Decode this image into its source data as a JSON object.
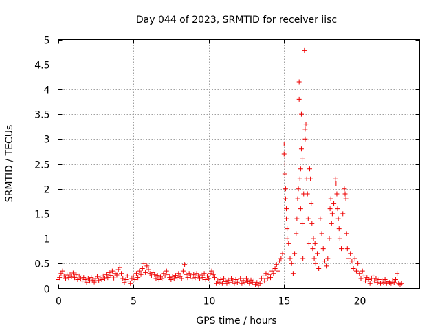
{
  "chart_data": {
    "type": "scatter",
    "title": "Day 044 of 2023, SRMTID for receiver iisc",
    "xlabel": "GPS time / hours",
    "ylabel": "SRMTID / TECUs",
    "xlim": [
      0,
      24
    ],
    "ylim": [
      0,
      5
    ],
    "x_ticks": [
      0,
      5,
      10,
      15,
      20
    ],
    "y_ticks": [
      0,
      0.5,
      1,
      1.5,
      2,
      2.5,
      3,
      3.5,
      4,
      4.5,
      5
    ],
    "x_tick_labels": [
      "0",
      "5",
      "10",
      "15",
      "20"
    ],
    "y_tick_labels": [
      "0",
      "0.5",
      "1",
      "1.5",
      "2",
      "2.5",
      "3",
      "3.5",
      "4",
      "4.5",
      "5"
    ],
    "grid": true,
    "marker": "+",
    "series": [
      {
        "color": "#ee0000",
        "points": [
          [
            0.0,
            0.18
          ],
          [
            0.1,
            0.22
          ],
          [
            0.2,
            0.3
          ],
          [
            0.3,
            0.35
          ],
          [
            0.4,
            0.25
          ],
          [
            0.5,
            0.2
          ],
          [
            0.6,
            0.27
          ],
          [
            0.7,
            0.22
          ],
          [
            0.8,
            0.29
          ],
          [
            0.9,
            0.24
          ],
          [
            1.0,
            0.31
          ],
          [
            1.1,
            0.22
          ],
          [
            1.2,
            0.28
          ],
          [
            1.3,
            0.18
          ],
          [
            1.4,
            0.25
          ],
          [
            1.5,
            0.2
          ],
          [
            1.6,
            0.15
          ],
          [
            1.7,
            0.22
          ],
          [
            1.8,
            0.18
          ],
          [
            1.9,
            0.12
          ],
          [
            2.0,
            0.2
          ],
          [
            2.1,
            0.15
          ],
          [
            2.2,
            0.22
          ],
          [
            2.3,
            0.17
          ],
          [
            2.4,
            0.13
          ],
          [
            2.5,
            0.2
          ],
          [
            2.6,
            0.24
          ],
          [
            2.7,
            0.16
          ],
          [
            2.8,
            0.21
          ],
          [
            2.9,
            0.18
          ],
          [
            3.0,
            0.25
          ],
          [
            3.1,
            0.2
          ],
          [
            3.2,
            0.28
          ],
          [
            3.3,
            0.22
          ],
          [
            3.4,
            0.32
          ],
          [
            3.5,
            0.26
          ],
          [
            3.6,
            0.35
          ],
          [
            3.7,
            0.21
          ],
          [
            3.8,
            0.3
          ],
          [
            3.9,
            0.27
          ],
          [
            4.0,
            0.38
          ],
          [
            4.1,
            0.42
          ],
          [
            4.2,
            0.3
          ],
          [
            4.3,
            0.2
          ],
          [
            4.4,
            0.12
          ],
          [
            4.5,
            0.18
          ],
          [
            4.6,
            0.25
          ],
          [
            4.7,
            0.15
          ],
          [
            4.8,
            0.1
          ],
          [
            4.9,
            0.2
          ],
          [
            5.0,
            0.25
          ],
          [
            5.1,
            0.18
          ],
          [
            5.2,
            0.3
          ],
          [
            5.3,
            0.22
          ],
          [
            5.4,
            0.35
          ],
          [
            5.5,
            0.28
          ],
          [
            5.6,
            0.4
          ],
          [
            5.7,
            0.5
          ],
          [
            5.8,
            0.32
          ],
          [
            5.9,
            0.45
          ],
          [
            6.0,
            0.38
          ],
          [
            6.1,
            0.3
          ],
          [
            6.2,
            0.25
          ],
          [
            6.3,
            0.32
          ],
          [
            6.4,
            0.28
          ],
          [
            6.5,
            0.2
          ],
          [
            6.6,
            0.26
          ],
          [
            6.7,
            0.18
          ],
          [
            6.8,
            0.23
          ],
          [
            6.9,
            0.2
          ],
          [
            7.0,
            0.3
          ],
          [
            7.1,
            0.25
          ],
          [
            7.2,
            0.35
          ],
          [
            7.3,
            0.28
          ],
          [
            7.4,
            0.22
          ],
          [
            7.5,
            0.18
          ],
          [
            7.6,
            0.24
          ],
          [
            7.7,
            0.2
          ],
          [
            7.8,
            0.26
          ],
          [
            7.9,
            0.22
          ],
          [
            8.0,
            0.3
          ],
          [
            8.1,
            0.24
          ],
          [
            8.2,
            0.2
          ],
          [
            8.3,
            0.35
          ],
          [
            8.4,
            0.48
          ],
          [
            8.5,
            0.28
          ],
          [
            8.6,
            0.22
          ],
          [
            8.7,
            0.3
          ],
          [
            8.8,
            0.25
          ],
          [
            8.9,
            0.2
          ],
          [
            9.0,
            0.28
          ],
          [
            9.1,
            0.22
          ],
          [
            9.2,
            0.3
          ],
          [
            9.3,
            0.25
          ],
          [
            9.4,
            0.2
          ],
          [
            9.5,
            0.27
          ],
          [
            9.6,
            0.22
          ],
          [
            9.7,
            0.3
          ],
          [
            9.8,
            0.18
          ],
          [
            9.9,
            0.25
          ],
          [
            10.0,
            0.2
          ],
          [
            10.1,
            0.3
          ],
          [
            10.2,
            0.35
          ],
          [
            10.3,
            0.28
          ],
          [
            10.4,
            0.22
          ],
          [
            10.5,
            0.1
          ],
          [
            10.6,
            0.15
          ],
          [
            10.7,
            0.12
          ],
          [
            10.8,
            0.18
          ],
          [
            10.9,
            0.1
          ],
          [
            11.0,
            0.2
          ],
          [
            11.1,
            0.14
          ],
          [
            11.2,
            0.1
          ],
          [
            11.3,
            0.17
          ],
          [
            11.4,
            0.12
          ],
          [
            11.5,
            0.2
          ],
          [
            11.6,
            0.15
          ],
          [
            11.7,
            0.1
          ],
          [
            11.8,
            0.18
          ],
          [
            11.9,
            0.12
          ],
          [
            12.0,
            0.15
          ],
          [
            12.1,
            0.2
          ],
          [
            12.2,
            0.1
          ],
          [
            12.3,
            0.16
          ],
          [
            12.4,
            0.12
          ],
          [
            12.5,
            0.2
          ],
          [
            12.6,
            0.14
          ],
          [
            12.7,
            0.1
          ],
          [
            12.8,
            0.17
          ],
          [
            12.9,
            0.12
          ],
          [
            13.0,
            0.15
          ],
          [
            13.1,
            0.08
          ],
          [
            13.2,
            0.12
          ],
          [
            13.3,
            0.06
          ],
          [
            13.4,
            0.1
          ],
          [
            13.5,
            0.2
          ],
          [
            13.6,
            0.25
          ],
          [
            13.7,
            0.15
          ],
          [
            13.8,
            0.3
          ],
          [
            13.9,
            0.2
          ],
          [
            14.0,
            0.28
          ],
          [
            14.1,
            0.22
          ],
          [
            14.2,
            0.35
          ],
          [
            14.3,
            0.3
          ],
          [
            14.4,
            0.4
          ],
          [
            14.5,
            0.48
          ],
          [
            14.6,
            0.35
          ],
          [
            14.7,
            0.55
          ],
          [
            14.8,
            0.6
          ],
          [
            14.9,
            0.7
          ],
          [
            15.0,
            2.9
          ],
          [
            15.0,
            2.7
          ],
          [
            15.05,
            2.5
          ],
          [
            15.05,
            2.3
          ],
          [
            15.1,
            2.0
          ],
          [
            15.1,
            1.8
          ],
          [
            15.15,
            1.6
          ],
          [
            15.15,
            1.4
          ],
          [
            15.2,
            1.2
          ],
          [
            15.2,
            1.0
          ],
          [
            15.3,
            0.9
          ],
          [
            15.4,
            0.6
          ],
          [
            15.5,
            0.5
          ],
          [
            15.6,
            0.3
          ],
          [
            15.7,
            0.7
          ],
          [
            15.8,
            1.1
          ],
          [
            15.85,
            1.4
          ],
          [
            15.9,
            1.8
          ],
          [
            15.95,
            2.0
          ],
          [
            16.0,
            3.8
          ],
          [
            16.0,
            4.15
          ],
          [
            16.05,
            2.2
          ],
          [
            16.1,
            2.4
          ],
          [
            16.1,
            1.6
          ],
          [
            16.15,
            2.8
          ],
          [
            16.15,
            3.5
          ],
          [
            16.2,
            2.6
          ],
          [
            16.2,
            1.3
          ],
          [
            16.25,
            0.6
          ],
          [
            16.3,
            1.9
          ],
          [
            16.35,
            4.78
          ],
          [
            16.4,
            3.2
          ],
          [
            16.4,
            3.0
          ],
          [
            16.45,
            3.3
          ],
          [
            16.5,
            2.2
          ],
          [
            16.55,
            1.9
          ],
          [
            16.6,
            1.4
          ],
          [
            16.65,
            0.9
          ],
          [
            16.7,
            2.4
          ],
          [
            16.75,
            2.2
          ],
          [
            16.8,
            1.7
          ],
          [
            16.85,
            1.3
          ],
          [
            16.9,
            0.8
          ],
          [
            16.95,
            1.0
          ],
          [
            17.0,
            0.6
          ],
          [
            17.05,
            0.9
          ],
          [
            17.1,
            0.5
          ],
          [
            17.2,
            0.7
          ],
          [
            17.3,
            0.4
          ],
          [
            17.4,
            1.4
          ],
          [
            17.5,
            1.1
          ],
          [
            17.6,
            0.8
          ],
          [
            17.7,
            0.55
          ],
          [
            17.8,
            0.45
          ],
          [
            17.9,
            0.6
          ],
          [
            18.0,
            1.0
          ],
          [
            18.05,
            1.6
          ],
          [
            18.1,
            1.8
          ],
          [
            18.15,
            1.3
          ],
          [
            18.2,
            1.5
          ],
          [
            18.3,
            1.7
          ],
          [
            18.4,
            2.2
          ],
          [
            18.45,
            2.1
          ],
          [
            18.5,
            1.9
          ],
          [
            18.55,
            1.6
          ],
          [
            18.6,
            1.4
          ],
          [
            18.65,
            1.2
          ],
          [
            18.7,
            1.0
          ],
          [
            18.8,
            0.8
          ],
          [
            18.9,
            1.5
          ],
          [
            19.0,
            2.0
          ],
          [
            19.05,
            1.9
          ],
          [
            19.1,
            1.8
          ],
          [
            19.15,
            1.1
          ],
          [
            19.2,
            0.8
          ],
          [
            19.3,
            0.6
          ],
          [
            19.4,
            0.7
          ],
          [
            19.5,
            0.55
          ],
          [
            19.6,
            0.4
          ],
          [
            19.7,
            0.6
          ],
          [
            19.8,
            0.35
          ],
          [
            19.9,
            0.5
          ],
          [
            20.0,
            0.3
          ],
          [
            20.1,
            0.2
          ],
          [
            20.2,
            0.35
          ],
          [
            20.3,
            0.25
          ],
          [
            20.4,
            0.15
          ],
          [
            20.5,
            0.22
          ],
          [
            20.6,
            0.18
          ],
          [
            20.7,
            0.1
          ],
          [
            20.8,
            0.2
          ],
          [
            20.9,
            0.25
          ],
          [
            21.0,
            0.15
          ],
          [
            21.1,
            0.2
          ],
          [
            21.2,
            0.12
          ],
          [
            21.3,
            0.18
          ],
          [
            21.4,
            0.1
          ],
          [
            21.5,
            0.15
          ],
          [
            21.6,
            0.12
          ],
          [
            21.7,
            0.18
          ],
          [
            21.8,
            0.1
          ],
          [
            21.9,
            0.14
          ],
          [
            22.0,
            0.12
          ],
          [
            22.1,
            0.1
          ],
          [
            22.2,
            0.15
          ],
          [
            22.3,
            0.12
          ],
          [
            22.4,
            0.18
          ],
          [
            22.5,
            0.3
          ],
          [
            22.6,
            0.1
          ],
          [
            22.7,
            0.08
          ],
          [
            22.8,
            0.1
          ]
        ]
      }
    ]
  }
}
